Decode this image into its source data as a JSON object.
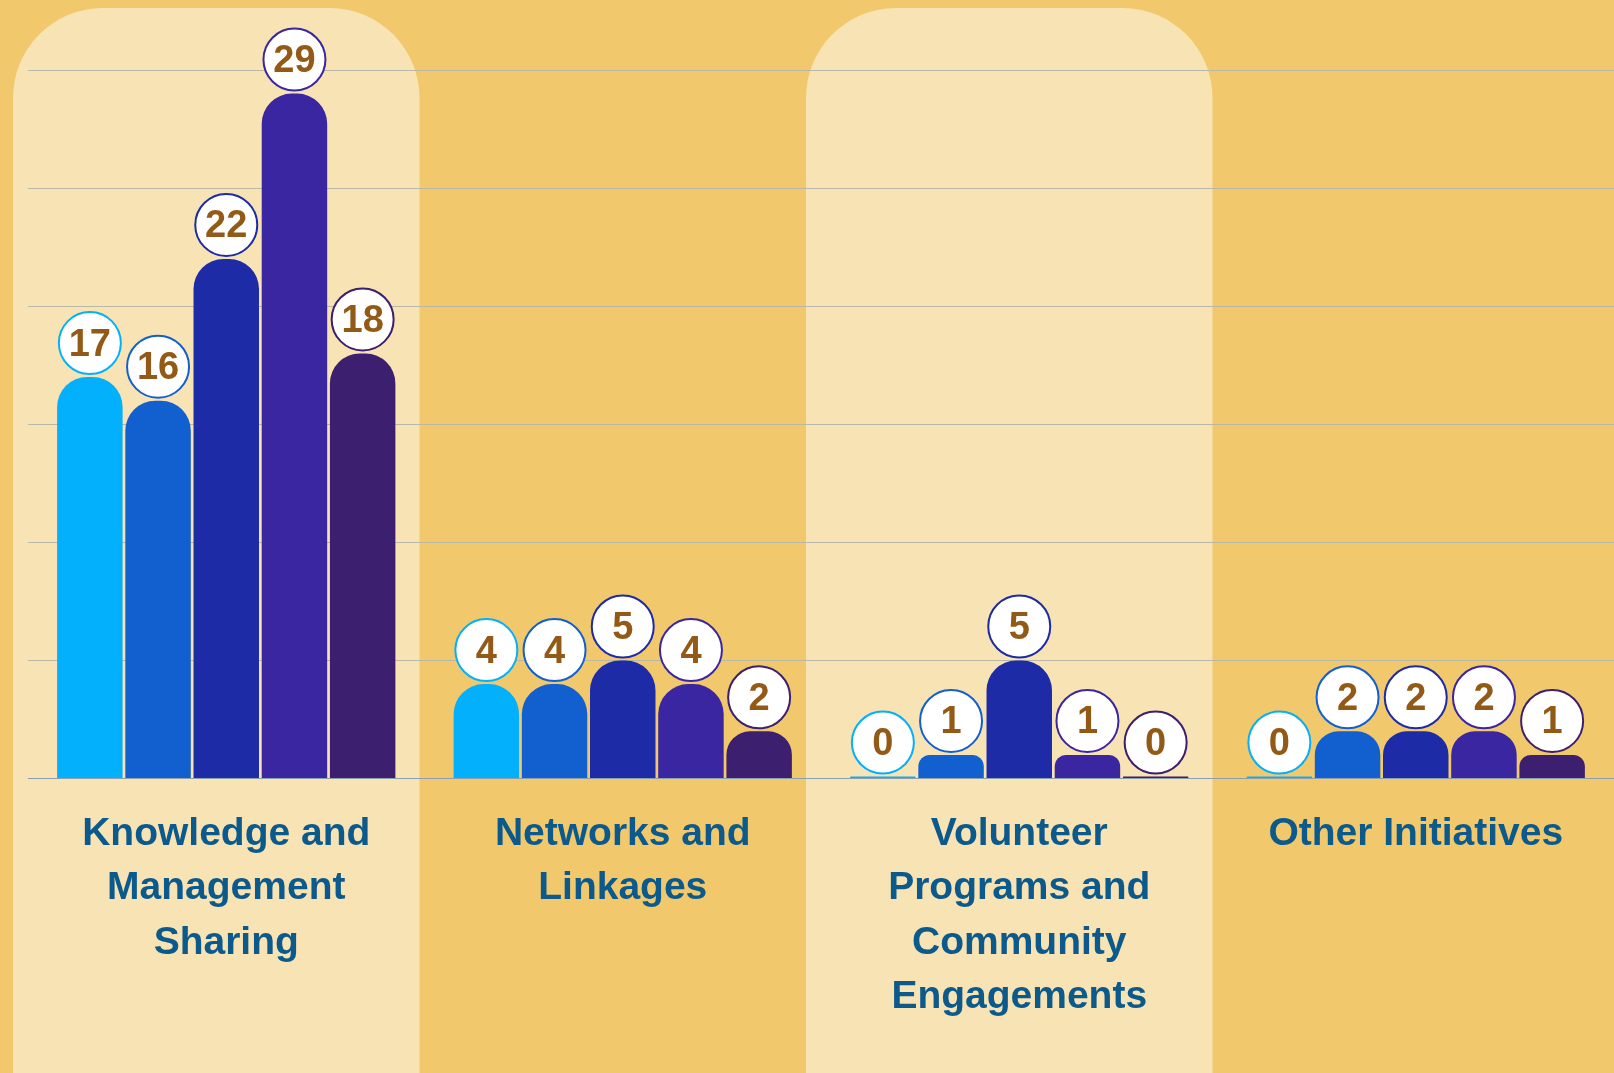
{
  "chart_data": {
    "type": "bar",
    "categories": [
      "Knowledge and Management Sharing",
      "Networks and Linkages",
      "Volunteer Programs and Community Engagements",
      "Other Initiatives"
    ],
    "series": [
      {
        "color": "#03b0fc",
        "values": [
          17,
          4,
          0,
          0
        ]
      },
      {
        "color": "#125fcf",
        "values": [
          16,
          4,
          1,
          2
        ]
      },
      {
        "color": "#1d2ba6",
        "values": [
          22,
          5,
          5,
          2
        ]
      },
      {
        "color": "#3a26a0",
        "values": [
          29,
          4,
          1,
          2
        ]
      },
      {
        "color": "#3c1f6e",
        "values": [
          18,
          2,
          0,
          1
        ]
      }
    ],
    "ylim": [
      0,
      30
    ],
    "yticks": [
      {
        "value": 0,
        "label": null
      },
      {
        "value": 5,
        "label": null
      },
      {
        "value": 10,
        "label": null
      },
      {
        "value": 15,
        "label": null
      },
      {
        "value": 20,
        "label": null
      },
      {
        "value": 25,
        "label": null
      },
      {
        "value": 30,
        "label": null
      }
    ],
    "bands": [
      {
        "axis": "x",
        "from": "Knowledge and Management Sharing",
        "to": "Knowledge and Management Sharing",
        "color": "#f8e3b4"
      },
      {
        "axis": "x",
        "from": "Volunteer Programs and Community Engagements",
        "to": "Volunteer Programs and Community Engagements",
        "color": "#f8e3b4"
      }
    ],
    "grid": "y",
    "tick_labels": "x",
    "legend": false,
    "data_labels": true
  }
}
